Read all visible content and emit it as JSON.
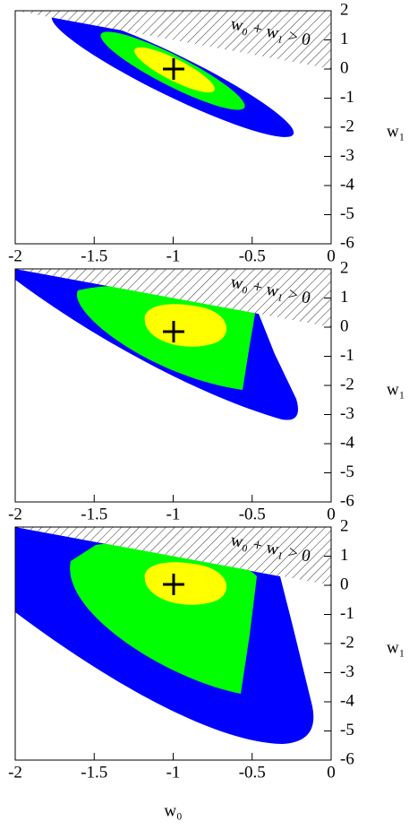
{
  "chart_data": [
    {
      "type": "contour",
      "annotation": "w₀ + w₁ > 0",
      "ylabel": "w₁",
      "xlim": [
        -2,
        0
      ],
      "ylim": [
        -6,
        2
      ],
      "xticks": [
        -2,
        -1.5,
        -1,
        -0.5,
        0
      ],
      "yticks": [
        -6,
        -5,
        -4,
        -3,
        -2,
        -1,
        0,
        1,
        2
      ]
    },
    {
      "type": "contour",
      "annotation": "w₀ + w₁ > 0",
      "ylabel": "w₁",
      "xlim": [
        -2,
        0
      ],
      "ylim": [
        -6,
        2
      ],
      "xticks": [
        -2,
        -1.5,
        -1,
        -0.5,
        0
      ],
      "yticks": [
        -6,
        -5,
        -4,
        -3,
        -2,
        -1,
        0,
        1,
        2
      ]
    },
    {
      "type": "contour",
      "annotation": "w₀ + w₁ > 0",
      "ylabel": "w₁",
      "xlabel": "w₀",
      "xlim": [
        -2,
        0
      ],
      "ylim": [
        -6,
        2
      ],
      "xticks": [
        -2,
        -1.5,
        -1,
        -0.5,
        0
      ],
      "yticks": [
        -6,
        -5,
        -4,
        -3,
        -2,
        -1,
        0,
        1,
        2
      ]
    }
  ]
}
